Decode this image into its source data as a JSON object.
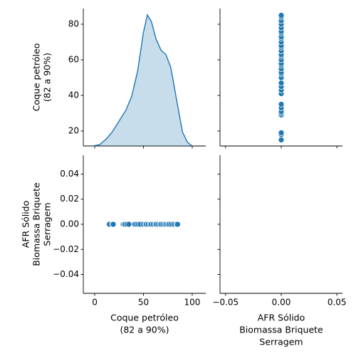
{
  "chart_data": [
    {
      "type": "kde",
      "ylabel": [
        "Coque petróleo",
        "(82 a 90%)"
      ],
      "color": "#1f77b4",
      "x": [
        -2,
        5,
        12,
        18,
        25,
        32,
        38,
        44,
        50,
        54,
        58,
        63,
        68,
        73,
        78,
        84,
        90,
        95,
        100
      ],
      "density": [
        0,
        0.0002,
        0.0011,
        0.0022,
        0.0039,
        0.0056,
        0.0078,
        0.0117,
        0.0178,
        0.0205,
        0.0195,
        0.0167,
        0.015,
        0.0143,
        0.0123,
        0.0072,
        0.0022,
        0.0006,
        0
      ],
      "density_lim": [
        0,
        0.0215
      ],
      "ylim": [
        11.6,
        88.8
      ],
      "yticks": [
        20,
        40,
        60,
        80
      ]
    },
    {
      "type": "scatter",
      "color": "#1f77b4",
      "x": [
        0,
        0,
        0,
        0,
        0,
        0,
        0,
        0,
        0,
        0,
        0,
        0,
        0,
        0,
        0,
        0,
        0,
        0,
        0,
        0,
        0,
        0,
        0,
        0,
        0,
        0,
        0,
        0,
        0,
        0,
        0,
        0,
        0,
        0
      ],
      "y": [
        15,
        18,
        19,
        29,
        30,
        31,
        33,
        35,
        41,
        43,
        45,
        47,
        50,
        52,
        53,
        55,
        57,
        58,
        60,
        62,
        63,
        65,
        67,
        68,
        70,
        72,
        73,
        75,
        76,
        78,
        80,
        82,
        84,
        85
      ]
    },
    {
      "type": "scatter",
      "color": "#1f77b4",
      "ylabel": [
        "AFR Sólido",
        "Biomassa Briquete",
        "Serragem"
      ],
      "xlabel": [
        "Coque petróleo",
        "(82 a 90%)"
      ],
      "x": [
        15,
        18,
        19,
        29,
        30,
        31,
        33,
        35,
        41,
        43,
        45,
        47,
        50,
        52,
        53,
        55,
        57,
        58,
        60,
        62,
        63,
        65,
        67,
        68,
        70,
        72,
        73,
        75,
        76,
        78,
        80,
        82,
        84,
        85
      ],
      "y": [
        0,
        0,
        0,
        0,
        0,
        0,
        0,
        0,
        0,
        0,
        0,
        0,
        0,
        0,
        0,
        0,
        0,
        0,
        0,
        0,
        0,
        0,
        0,
        0,
        0,
        0,
        0,
        0,
        0,
        0,
        0,
        0,
        0,
        0
      ],
      "xlim": [
        -11.7,
        113.9
      ],
      "xticks": [
        0,
        50,
        100
      ],
      "ylim": [
        -0.055,
        0.055
      ],
      "yticks": [
        {
          "value": -0.04,
          "label": "−0.04"
        },
        {
          "value": -0.02,
          "label": "−0.02"
        },
        {
          "value": 0,
          "label": "0.00"
        },
        {
          "value": 0.02,
          "label": "0.02"
        },
        {
          "value": 0.04,
          "label": "0.04"
        }
      ]
    },
    {
      "type": "scatter",
      "color": "#1f77b4",
      "xlabel": [
        "AFR Sólido",
        "Biomassa Briquete",
        "Serragem"
      ],
      "x": [],
      "y": [],
      "xlim": [
        -0.055,
        0.055
      ],
      "xticks": [
        {
          "value": -0.05,
          "label": "−0.05"
        },
        {
          "value": 0,
          "label": "0.00"
        },
        {
          "value": 0.05,
          "label": "0.05"
        }
      ]
    }
  ]
}
